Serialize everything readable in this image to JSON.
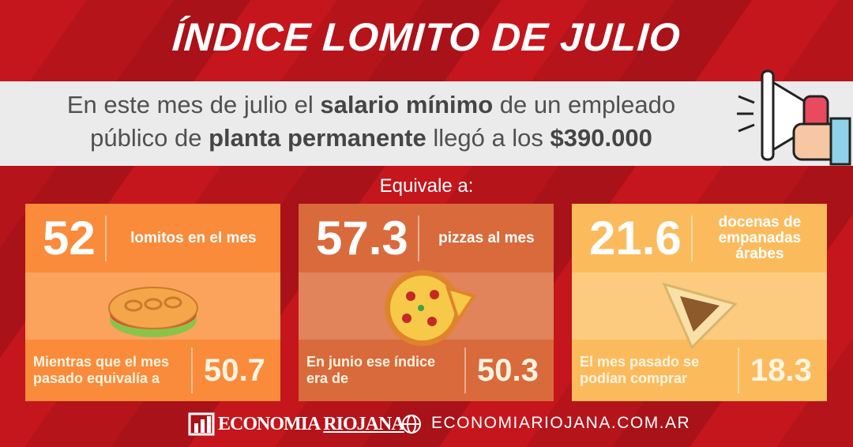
{
  "header": {
    "title": "ÍNDICE LOMITO DE JULIO"
  },
  "intro": {
    "parts": [
      {
        "text": "En este mes de julio el ",
        "bold": false
      },
      {
        "text": "salario mínimo",
        "bold": true
      },
      {
        "text": " de un empleado público de ",
        "bold": false
      },
      {
        "text": "planta permanente",
        "bold": true
      },
      {
        "text": " llegó a los ",
        "bold": false
      },
      {
        "text": "$390.000",
        "bold": true
      }
    ]
  },
  "equivalence_label": "Equivale a:",
  "cards": [
    {
      "value": 52,
      "label": "lomitos en el mes",
      "previous_text": "Mientras que el mes pasado equivalía a",
      "previous_value": 50.7,
      "color": "#f98b3b",
      "band_color": "#fba35d"
    },
    {
      "value": 57.3,
      "label": "pizzas al mes",
      "previous_text": "En junio ese índice era de",
      "previous_value": 50.3,
      "color": "#d96a3c",
      "band_color": "#e1835b"
    },
    {
      "value": 21.6,
      "label": "docenas de empanadas árabes",
      "previous_text": "El mes pasado se podían comprar",
      "previous_value": 18.3,
      "color": "#fbbb5d",
      "band_color": "#fccb7f"
    }
  ],
  "footer": {
    "logo_main": "ECONOMIA",
    "logo_accent": "RIOJANA",
    "website": "ECONOMIARIOJANA.COM.AR"
  }
}
